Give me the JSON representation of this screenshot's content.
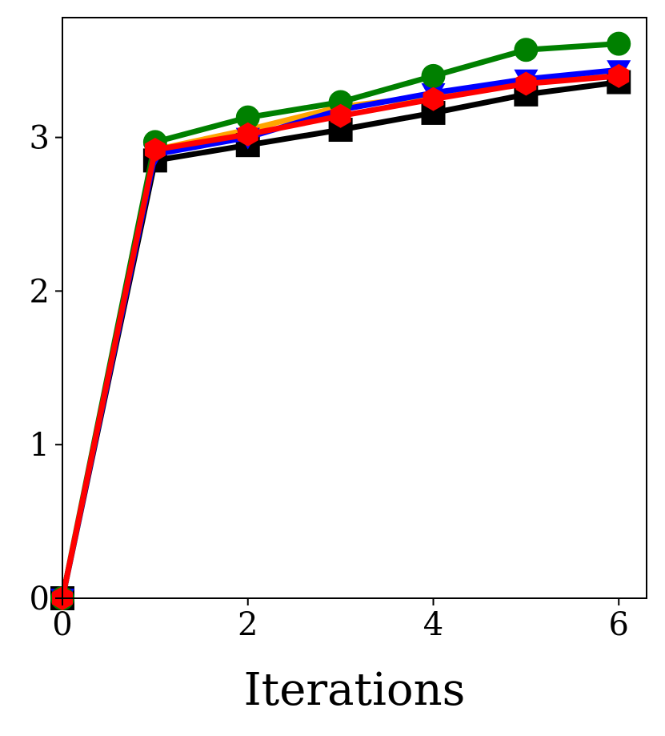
{
  "chart_data": {
    "type": "line",
    "xlabel": "Iterations",
    "ylabel": "",
    "xlim": [
      0,
      6.3
    ],
    "ylim": [
      0,
      3.78
    ],
    "xticks": [
      0,
      2,
      4,
      6
    ],
    "yticks": [
      0,
      1,
      2,
      3
    ],
    "grid": false,
    "x": [
      0,
      1,
      2,
      3,
      4,
      5,
      6
    ],
    "series": [
      {
        "color": "#ffa500",
        "marker": "diamond",
        "values": [
          0.0,
          2.92,
          3.05,
          3.2,
          3.27,
          3.36,
          3.41
        ]
      },
      {
        "color": "#000000",
        "marker": "square",
        "values": [
          0.0,
          2.85,
          2.95,
          3.05,
          3.16,
          3.28,
          3.36
        ]
      },
      {
        "color": "#0000ff",
        "marker": "triangle-down",
        "values": [
          0.0,
          2.89,
          3.0,
          3.18,
          3.29,
          3.38,
          3.44
        ]
      },
      {
        "color": "#008000",
        "marker": "circle",
        "values": [
          0.0,
          2.97,
          3.13,
          3.23,
          3.4,
          3.57,
          3.61
        ]
      },
      {
        "color": "#ff0000",
        "marker": "hexagon",
        "values": [
          0.0,
          2.92,
          3.02,
          3.14,
          3.25,
          3.35,
          3.4
        ]
      }
    ]
  }
}
